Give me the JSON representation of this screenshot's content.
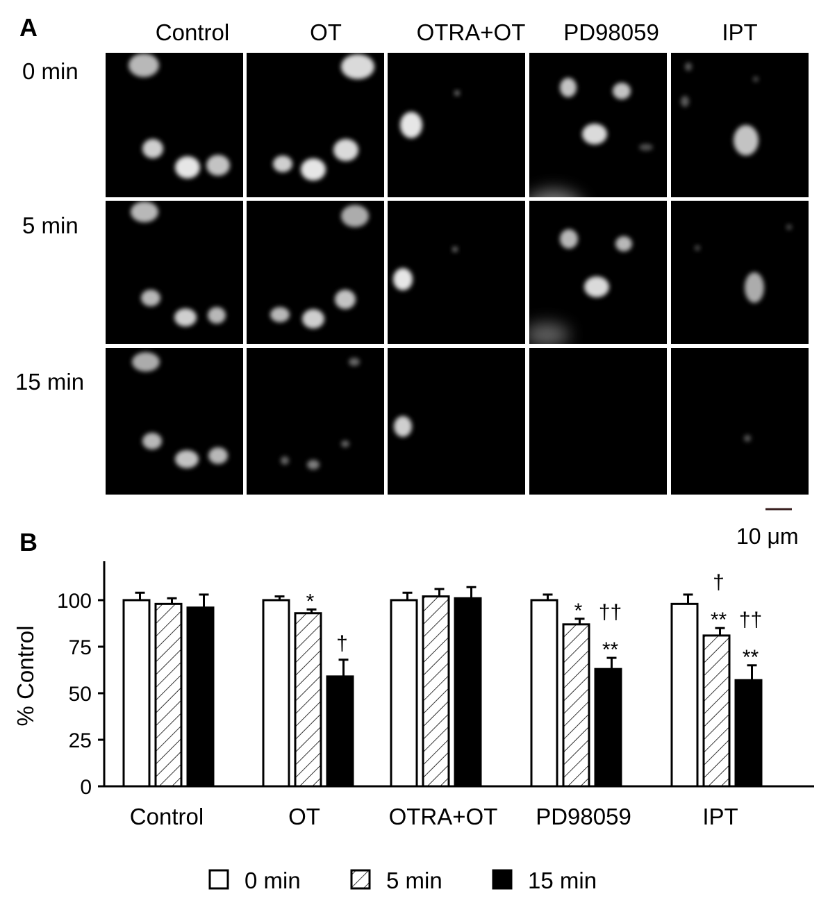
{
  "panels": {
    "a_label": "A",
    "b_label": "B"
  },
  "micrographs": {
    "columns": [
      "Control",
      "OT",
      "OTRA+OT",
      "PD98059",
      "IPT"
    ],
    "rows": [
      "0 min",
      "5 min",
      "15 min"
    ],
    "scale_bar": {
      "label": "10 μm",
      "length": 10,
      "unit": "μm"
    }
  },
  "chart_data": {
    "type": "bar",
    "categories": [
      "Control",
      "OT",
      "OTRA+OT",
      "PD98059",
      "IPT"
    ],
    "ylabel": "% Control",
    "xlabel": "",
    "ylim": [
      0,
      120
    ],
    "yticks": [
      0,
      25,
      50,
      75,
      100
    ],
    "grid": false,
    "legend_position": "bottom",
    "series": [
      {
        "name": "0 min",
        "fill": "white",
        "values": [
          100,
          100,
          100,
          100,
          98
        ],
        "errors": [
          4,
          2,
          4,
          3,
          5
        ]
      },
      {
        "name": "5 min",
        "fill": "hatched",
        "values": [
          98,
          93,
          102,
          87,
          81
        ],
        "errors": [
          3,
          2,
          4,
          3,
          4
        ]
      },
      {
        "name": "15 min",
        "fill": "black",
        "values": [
          96,
          59,
          101,
          63,
          57
        ],
        "errors": [
          7,
          9,
          6,
          6,
          8
        ]
      }
    ],
    "annotations": [
      {
        "category": "OT",
        "series": "5 min",
        "text": "*"
      },
      {
        "category": "OT",
        "series": "15 min",
        "text": "†"
      },
      {
        "category": "PD98059",
        "series": "5 min",
        "text": "*"
      },
      {
        "category": "PD98059",
        "series": "15 min",
        "text": "††"
      },
      {
        "category": "PD98059",
        "series": "15 min",
        "text": "**"
      },
      {
        "category": "IPT",
        "series": "5 min",
        "text": "†"
      },
      {
        "category": "IPT",
        "series": "5 min",
        "text": "**"
      },
      {
        "category": "IPT",
        "series": "15 min",
        "text": "††"
      },
      {
        "category": "IPT",
        "series": "15 min",
        "text": "**"
      }
    ]
  },
  "colors": {
    "micrograph_background": "#000000",
    "cell_glow": "#e6e6e6",
    "bar_stroke": "#000000"
  }
}
